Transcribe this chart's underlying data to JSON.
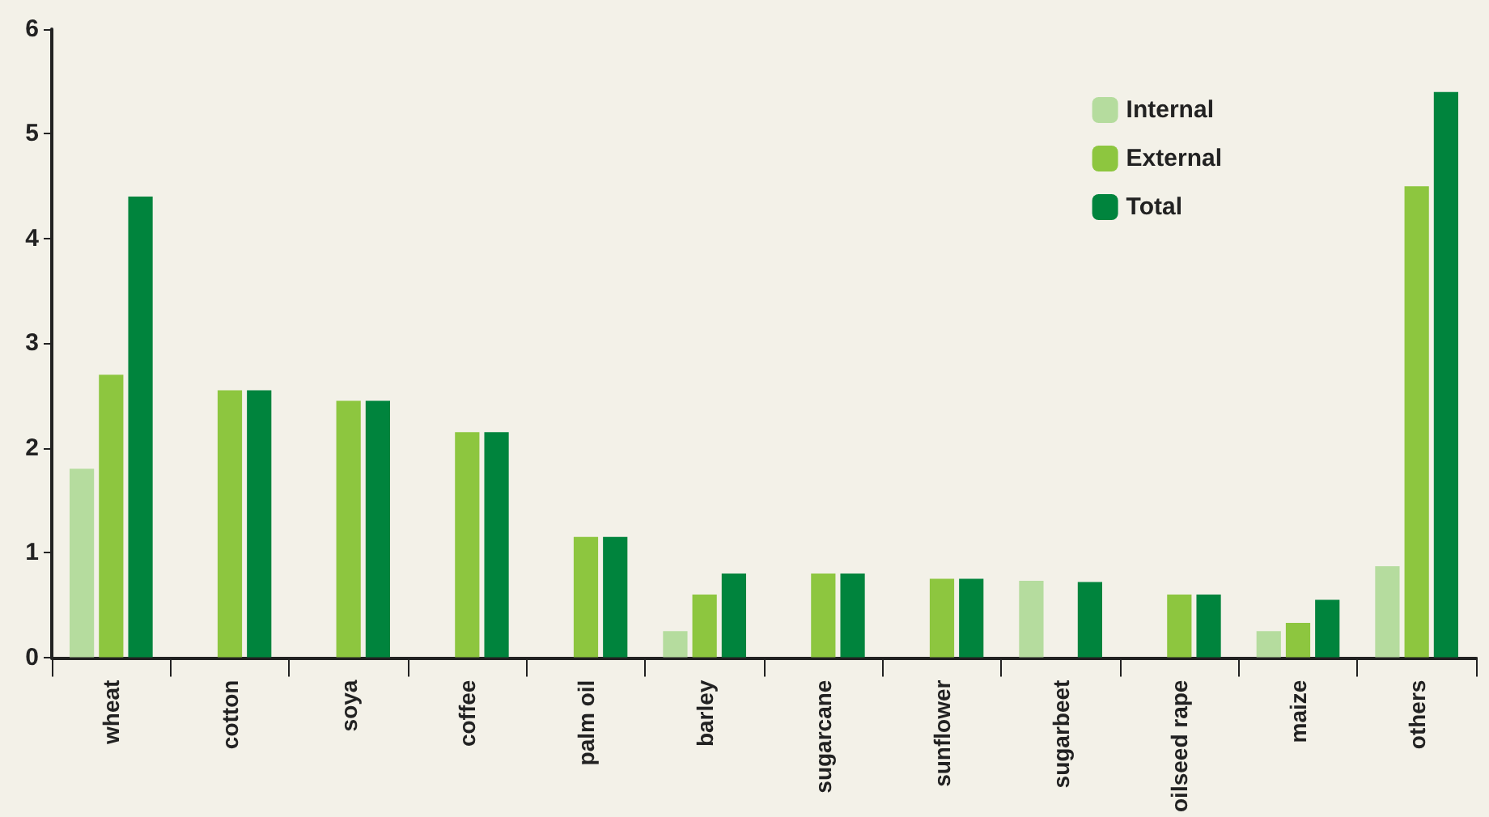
{
  "chart_data": {
    "type": "bar",
    "categories": [
      "wheat",
      "cotton",
      "soya",
      "coffee",
      "palm oil",
      "barley",
      "sugarcane",
      "sunflower",
      "sugarbeet",
      "oilseed rape",
      "maize",
      "others"
    ],
    "series": [
      {
        "name": "Internal",
        "color": "#b5dc9e",
        "values": [
          1.8,
          null,
          null,
          null,
          null,
          0.25,
          null,
          null,
          0.73,
          null,
          0.25,
          0.87
        ]
      },
      {
        "name": "External",
        "color": "#8dc63f",
        "values": [
          2.7,
          2.55,
          2.45,
          2.15,
          1.15,
          0.6,
          0.8,
          0.75,
          null,
          0.6,
          0.33,
          4.5
        ]
      },
      {
        "name": "Total",
        "color": "#00843d",
        "values": [
          4.4,
          2.55,
          2.45,
          2.15,
          1.15,
          0.8,
          0.8,
          0.75,
          0.72,
          0.6,
          0.55,
          5.4
        ]
      }
    ],
    "ylim": [
      0,
      6
    ],
    "yticks": [
      0,
      1,
      2,
      3,
      4,
      5,
      6
    ],
    "grid": false,
    "legend": "top right"
  }
}
